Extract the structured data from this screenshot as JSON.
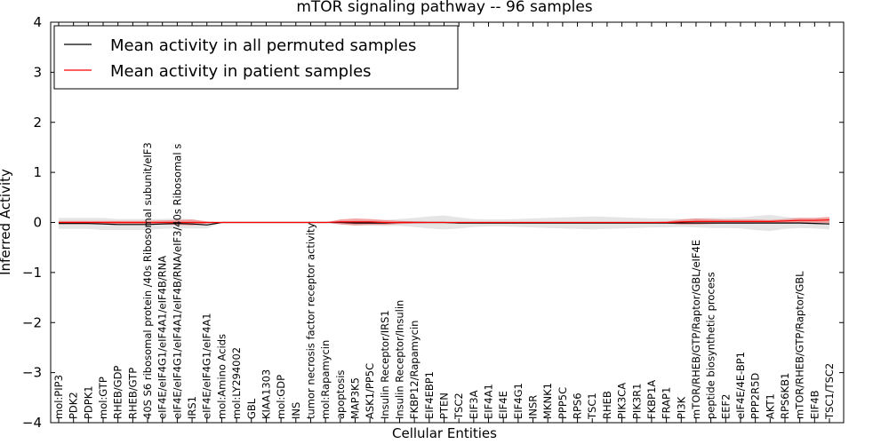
{
  "chart_data": {
    "type": "line",
    "title": "mTOR signaling pathway -- 96 samples",
    "xlabel": "Cellular Entities",
    "ylabel": "Inferred Activity",
    "ylim": [
      -4,
      4
    ],
    "yticks": [
      -4,
      -3,
      -2,
      -1,
      0,
      1,
      2,
      3,
      4
    ],
    "ytick_labels": [
      "−4",
      "−3",
      "−2",
      "−1",
      "0",
      "1",
      "2",
      "3",
      "4"
    ],
    "legend_position": "top-left",
    "colors": {
      "permuted": "#000000",
      "patient": "#ff0000",
      "permuted_band": "#d3d3d3",
      "patient_band": "#f08080"
    },
    "categories": [
      "mol:PIP3",
      "PDK2",
      "PDPK1",
      "mol:GTP",
      "RHEB/GDP",
      "RHEB/GTP",
      "40S S6 ribosomal protein /40s Ribosomal subunit/eIF3",
      "eIF4E/eIF4G1/eIF4A1/eIF4B/RNA",
      "eIF4E/eIF4G1/eIF4A1/eIF4B/RNA/eIF3/40s Ribosomal s",
      "IRS1",
      "eIF4E/eIF4G1/eIF4A1",
      "mol:Amino Acids",
      "mol:LY294002",
      "GBL",
      "KIAA1303",
      "mol:GDP",
      "INS",
      "tumor necrosis factor receptor activity",
      "mol:Rapamycin",
      "apoptosis",
      "MAP3K5",
      "ASK1/PP5C",
      "Insulin Receptor/IRS1",
      "Insulin Receptor/Insulin",
      "FKBP12/Rapamycin",
      "EIF4EBP1",
      "PTEN",
      "TSC2",
      "EIF3A",
      "EIF4A1",
      "EIF4E",
      "EIF4G1",
      "INSR",
      "MKNK1",
      "PPP5C",
      "RPS6",
      "TSC1",
      "RHEB",
      "PIK3CA",
      "PIK3R1",
      "FKBP1A",
      "FRAP1",
      "PI3K",
      "mTOR/RHEB/GTP/Raptor/GBL/eIF4E",
      "peptide biosynthetic process",
      "EEF2",
      "eIF4E/4E-BP1",
      "PPP2R5D",
      "AKT1",
      "RPS6KB1",
      "mTOR/RHEB/GTP/Raptor/GBL",
      "EIF4B",
      "TSC1/TSC2"
    ],
    "series": [
      {
        "name": "Mean activity in all permuted samples",
        "color": "#000000",
        "values": [
          -0.02,
          -0.02,
          -0.02,
          -0.03,
          -0.04,
          -0.04,
          -0.04,
          -0.03,
          -0.02,
          -0.03,
          -0.05,
          0,
          0,
          0,
          0,
          0,
          0,
          0,
          0,
          0,
          -0.01,
          -0.01,
          -0.01,
          0,
          0,
          0,
          0,
          -0.01,
          -0.01,
          -0.01,
          -0.01,
          -0.01,
          -0.01,
          -0.01,
          -0.01,
          -0.01,
          -0.01,
          -0.01,
          -0.01,
          -0.01,
          -0.01,
          -0.01,
          -0.01,
          -0.01,
          -0.01,
          -0.01,
          -0.01,
          -0.01,
          -0.01,
          -0.01,
          -0.01,
          -0.02,
          -0.03
        ],
        "band": [
          0.11,
          0.11,
          0.11,
          0.12,
          0.11,
          0.11,
          0.11,
          0.1,
          0.1,
          0.09,
          0.07,
          0.01,
          0.01,
          0,
          0,
          0,
          0,
          0,
          0,
          0.03,
          0.05,
          0.05,
          0.06,
          0.07,
          0.09,
          0.12,
          0.14,
          0.11,
          0.08,
          0.07,
          0.07,
          0.08,
          0.09,
          0.1,
          0.11,
          0.12,
          0.13,
          0.12,
          0.11,
          0.1,
          0.09,
          0.09,
          0.08,
          0.09,
          0.1,
          0.1,
          0.11,
          0.14,
          0.16,
          0.12,
          0.1,
          0.1,
          0.11
        ]
      },
      {
        "name": "Mean activity in patient samples",
        "color": "#ff0000",
        "values": [
          0,
          0,
          0,
          0,
          0,
          0,
          0,
          0,
          0,
          0,
          0,
          0,
          0,
          0,
          0,
          0,
          0,
          0,
          0,
          0.01,
          0.01,
          0.01,
          0,
          0,
          0,
          0,
          0,
          0,
          0,
          0,
          0,
          0,
          0,
          0,
          0,
          0,
          0,
          0,
          0,
          0,
          0,
          0,
          0.01,
          0.02,
          0.02,
          0.02,
          0.02,
          0.02,
          0.02,
          0.03,
          0.04,
          0.04,
          0.05
        ],
        "band": [
          0.03,
          0.03,
          0.03,
          0.03,
          0.03,
          0.03,
          0.03,
          0.04,
          0.05,
          0.06,
          0.02,
          0,
          0,
          0,
          0,
          0,
          0,
          0,
          0,
          0.05,
          0.07,
          0.06,
          0.05,
          0.03,
          0.02,
          0.01,
          0.01,
          0.01,
          0.01,
          0.01,
          0.01,
          0.01,
          0.01,
          0.01,
          0.01,
          0.01,
          0.01,
          0.01,
          0.01,
          0.01,
          0.01,
          0.02,
          0.05,
          0.06,
          0.05,
          0.04,
          0.04,
          0.04,
          0.03,
          0.04,
          0.05,
          0.05,
          0.06
        ]
      }
    ]
  }
}
